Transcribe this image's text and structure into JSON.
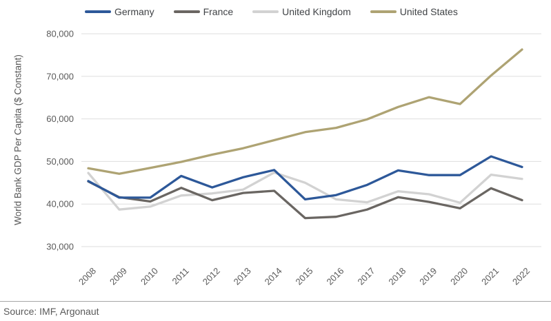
{
  "chart_data": {
    "type": "line",
    "title": "",
    "xlabel": "",
    "ylabel": "World Bank GDP Per Capita ($ Constant)",
    "ylim": [
      30000,
      80000
    ],
    "ytick_step": 10000,
    "ytick_labels": [
      "30,000",
      "40,000",
      "50,000",
      "60,000",
      "70,000",
      "80,000"
    ],
    "grid": "horizontal",
    "legend_position": "top",
    "categories": [
      "2008",
      "2009",
      "2010",
      "2011",
      "2012",
      "2013",
      "2014",
      "2015",
      "2016",
      "2017",
      "2018",
      "2019",
      "2020",
      "2021",
      "2022"
    ],
    "series": [
      {
        "name": "Germany",
        "color": "#2D5899",
        "values": [
          45400,
          41500,
          41500,
          46600,
          43900,
          46300,
          48000,
          41100,
          42100,
          44500,
          47900,
          46800,
          46800,
          51200,
          48700
        ]
      },
      {
        "name": "France",
        "color": "#6A6662",
        "values": [
          45300,
          41600,
          40600,
          43800,
          40900,
          42600,
          43100,
          36700,
          37000,
          38700,
          41600,
          40500,
          39000,
          43700,
          40900
        ]
      },
      {
        "name": "United Kingdom",
        "color": "#D2D2D2",
        "values": [
          47300,
          38700,
          39400,
          42000,
          42500,
          43400,
          47400,
          45000,
          41100,
          40400,
          43000,
          42300,
          40300,
          46900,
          45900
        ]
      },
      {
        "name": "United States",
        "color": "#AEA373",
        "values": [
          48400,
          47100,
          48500,
          49900,
          51600,
          53100,
          55000,
          56900,
          57900,
          59900,
          62800,
          65100,
          63500,
          70200,
          76300
        ]
      }
    ],
    "z_order": [
      2,
      1,
      0,
      3
    ]
  },
  "source": {
    "text": "Source: IMF, Argonaut"
  },
  "colors": {
    "grid": "#DDDDDD",
    "axis_text": "#595959",
    "legend_text": "#3F4245",
    "source_rule": "#A6A6A6",
    "background": "#FFFFFF"
  }
}
